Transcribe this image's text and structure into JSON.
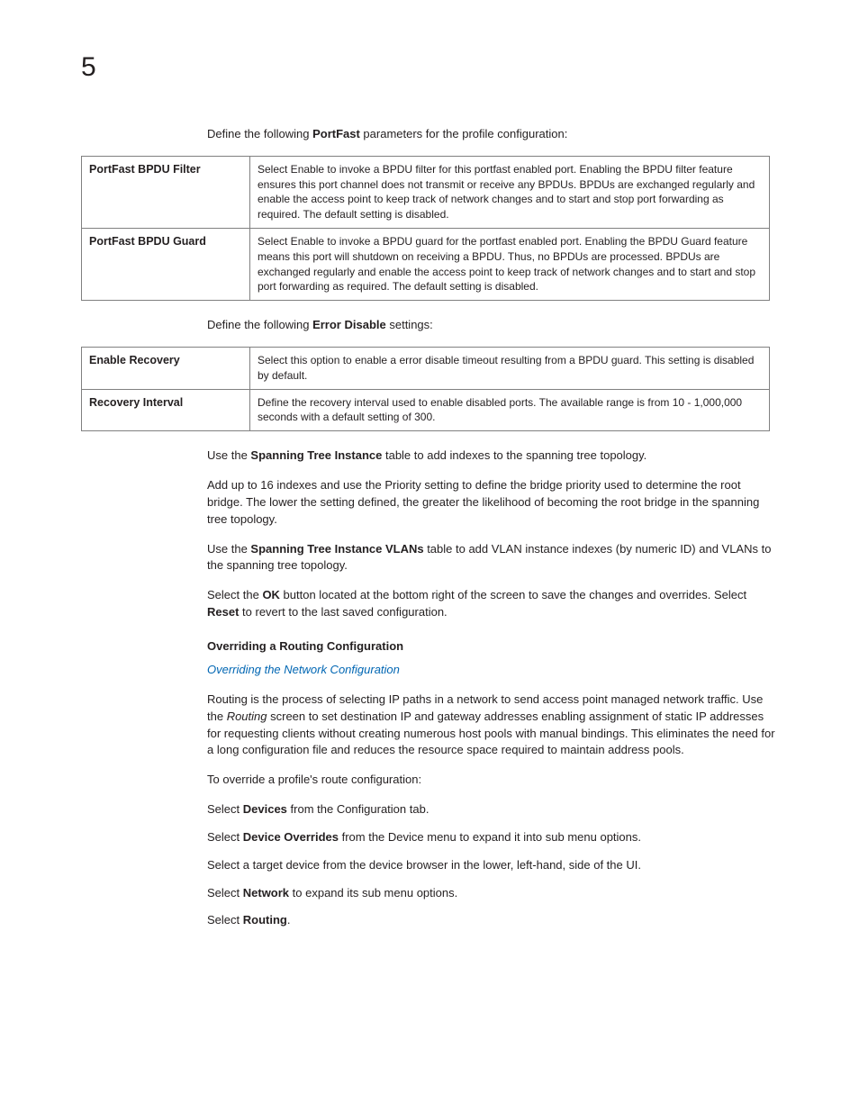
{
  "pagenum": "5",
  "intro1_pre": "Define the following ",
  "intro1_bold": "PortFast",
  "intro1_post": " parameters for the profile configuration:",
  "table1": {
    "r1_label": "PortFast BPDU Filter",
    "r1_desc": "Select Enable to invoke a BPDU filter for this portfast enabled port. Enabling the BPDU filter feature ensures this port channel does not transmit or receive any BPDUs. BPDUs are exchanged regularly and enable the access point to keep track of network changes and to start and stop port forwarding as required. The default setting is disabled.",
    "r2_label": "PortFast BPDU Guard",
    "r2_desc": "Select Enable to invoke a BPDU guard for the portfast enabled port. Enabling the BPDU Guard feature means this port will shutdown on receiving a BPDU. Thus, no BPDUs are processed. BPDUs are exchanged regularly and enable the access point to keep track of network changes and to start and stop port forwarding as required. The default setting is disabled."
  },
  "intro2_pre": "Define the following ",
  "intro2_bold": "Error Disable",
  "intro2_post": " settings:",
  "table2": {
    "r1_label": "Enable Recovery",
    "r1_desc": "Select this option to enable a error disable timeout resulting from a BPDU guard. This setting is disabled by default.",
    "r2_label": "Recovery Interval",
    "r2_desc": "Define the recovery interval used to enable disabled ports. The available range is from 10 - 1,000,000 seconds with a default setting of 300."
  },
  "p_sti_pre": "Use the ",
  "p_sti_bold": "Spanning Tree Instance",
  "p_sti_post": " table to add indexes to the spanning tree topology.",
  "p_add16": "Add up to 16 indexes and use the Priority setting to define the bridge priority used to determine the root bridge. The lower the setting defined, the greater the likelihood of becoming the root bridge in the spanning tree topology.",
  "p_stiv_pre": "Use the ",
  "p_stiv_bold": "Spanning Tree Instance VLANs",
  "p_stiv_post": " table to add VLAN instance indexes (by numeric ID) and VLANs to the spanning tree topology.",
  "p_ok_a": "Select the ",
  "p_ok_b": "OK",
  "p_ok_c": " button located at the bottom right of the screen to save the changes and overrides. Select ",
  "p_ok_d": "Reset",
  "p_ok_e": " to revert to the last saved configuration.",
  "section_hdr": "Overriding a Routing Configuration",
  "link_text": "Overriding the Network Configuration",
  "p_routing_a": "Routing is the process of selecting IP paths in a network to send access point managed network traffic. Use the ",
  "p_routing_b": "Routing",
  "p_routing_c": " screen to set destination IP and gateway addresses enabling assignment of static IP addresses for requesting clients without creating numerous host pools with manual bindings. This eliminates the need for a long configuration file and reduces the resource space required to maintain address pools.",
  "p_override_intro": "To override a profile's route configuration:",
  "s1a": "Select ",
  "s1b": "Devices",
  "s1c": " from the Configuration tab.",
  "s2a": "Select ",
  "s2b": "Device Overrides",
  "s2c": " from the Device menu to expand it into sub menu options.",
  "s3": "Select a target device from the device browser in the lower, left-hand, side of the UI.",
  "s4a": "Select ",
  "s4b": "Network",
  "s4c": " to expand its sub menu options.",
  "s5a": "Select ",
  "s5b": "Routing",
  "s5c": "."
}
